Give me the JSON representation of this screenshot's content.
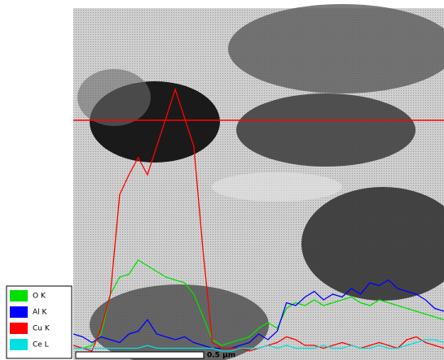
{
  "chart_data": {
    "type": "line",
    "x": [
      0,
      2.5,
      5,
      7.5,
      10,
      12.5,
      15,
      17.5,
      20,
      22.5,
      25,
      27.5,
      30,
      32.5,
      35,
      37.5,
      40,
      42.5,
      45,
      47.5,
      50,
      52.5,
      55,
      57.5,
      60,
      62.5,
      65,
      67.5,
      70,
      72.5,
      75,
      77.5,
      80,
      82.5,
      85,
      87.5,
      90,
      92.5,
      95,
      97.5,
      100
    ],
    "xlim": [
      0,
      100
    ],
    "ylim": [
      0,
      100
    ],
    "series": [
      {
        "name": "O K",
        "color": "#00e000",
        "values": [
          1,
          1,
          2,
          6,
          20,
          26,
          27,
          32,
          30,
          28,
          26,
          25,
          24,
          20,
          12,
          4,
          2,
          3,
          4,
          5,
          8,
          10,
          8,
          15,
          17,
          16,
          18,
          16,
          17,
          18,
          19,
          17,
          16,
          18,
          17,
          16,
          15,
          14,
          13,
          12,
          11
        ]
      },
      {
        "name": "Al K",
        "color": "#0000ff",
        "values": [
          6,
          5,
          3,
          5,
          4,
          3,
          6,
          7,
          11,
          6,
          5,
          4,
          5,
          3,
          2,
          1,
          1,
          1,
          2,
          3,
          6,
          4,
          7,
          17,
          16,
          19,
          21,
          18,
          20,
          19,
          22,
          20,
          24,
          23,
          25,
          22,
          21,
          20,
          18,
          15,
          14
        ]
      },
      {
        "name": "Cu K",
        "color": "#ff0000",
        "values": [
          2,
          1,
          0,
          8,
          20,
          55,
          62,
          68,
          62,
          72,
          82,
          92,
          82,
          72,
          35,
          3,
          1,
          1,
          1,
          0,
          1,
          2,
          3,
          5,
          4,
          2,
          2,
          1,
          2,
          3,
          2,
          1,
          2,
          3,
          2,
          1,
          4,
          5,
          3,
          2,
          1
        ]
      },
      {
        "name": "Ce L",
        "color": "#00e0e0",
        "values": [
          1,
          1,
          1,
          1,
          1,
          1,
          1,
          1,
          2,
          1,
          1,
          1,
          1,
          1,
          1,
          1,
          0,
          0,
          1,
          1,
          1,
          2,
          1,
          2,
          1,
          1,
          1,
          2,
          1,
          1,
          2,
          1,
          1,
          2,
          1,
          1,
          2,
          3,
          4,
          4,
          3
        ]
      }
    ],
    "scale_bar": "0.5 µm"
  }
}
